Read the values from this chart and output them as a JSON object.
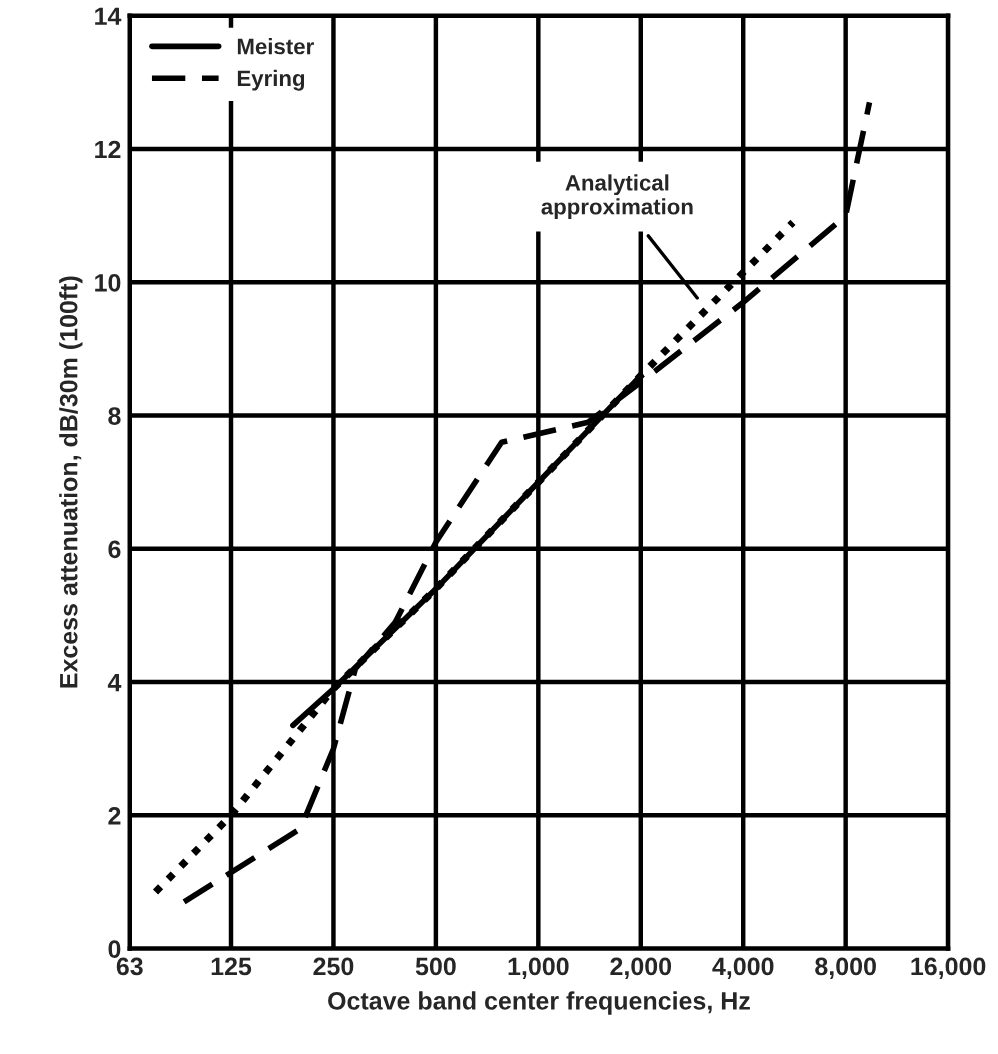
{
  "chart_data": {
    "type": "line",
    "xlabel": "Octave band center frequencies, Hz",
    "ylabel": "Excess attenuation, dB/30m (100ft)",
    "log": "x",
    "xlim": [
      63,
      16000
    ],
    "xticks": [
      63,
      125,
      250,
      500,
      {
        "value": 1000,
        "label": "1,000"
      },
      {
        "value": 2000,
        "label": "2,000"
      },
      {
        "value": 4000,
        "label": "4,000"
      },
      {
        "value": 8000,
        "label": "8,000"
      },
      {
        "value": 16000,
        "label": "16,000"
      }
    ],
    "ylim": [
      0,
      14
    ],
    "yticks": [
      0,
      2,
      4,
      6,
      8,
      10,
      12,
      14
    ],
    "grid": true,
    "legend": "top left",
    "series": [
      {
        "name": "Meister",
        "color": "#000000",
        "line_style": "solid",
        "x": [
          190,
          250,
          500,
          1000,
          2000
        ],
        "values": [
          3.35,
          3.9,
          5.4,
          7.0,
          8.6
        ]
      },
      {
        "name": "Eyring",
        "color": "#000000",
        "line_style": "dashed",
        "x": [
          91,
          200,
          250,
          290,
          380,
          500,
          780,
          1400,
          2000,
          4000,
          8000,
          9400
        ],
        "values": [
          0.7,
          1.8,
          3.0,
          4.2,
          4.9,
          6.1,
          7.6,
          7.9,
          8.5,
          9.7,
          11.0,
          12.7
        ]
      },
      {
        "color": "#000000",
        "line_style": "dotted",
        "x": [
          75,
          125,
          250,
          500,
          1000,
          2000,
          5600
        ],
        "values": [
          0.85,
          2.0,
          3.9,
          5.4,
          7.0,
          8.6,
          10.9
        ]
      }
    ],
    "annotations": [
      {
        "text": "Analytical\napproximation",
        "x": 3000,
        "y": 9.7
      }
    ]
  }
}
